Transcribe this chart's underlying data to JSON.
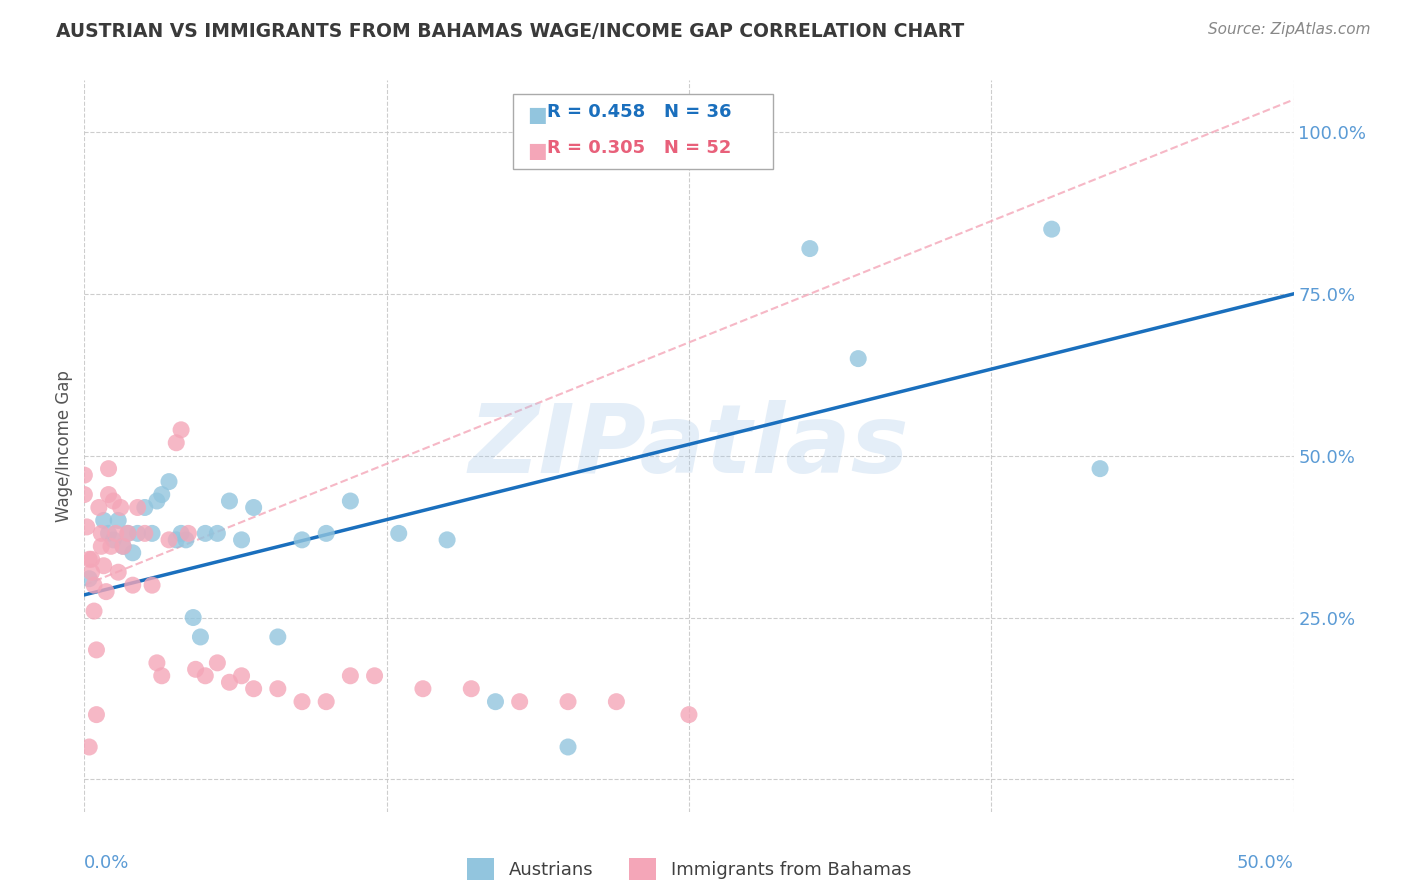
{
  "title": "AUSTRIAN VS IMMIGRANTS FROM BAHAMAS WAGE/INCOME GAP CORRELATION CHART",
  "source": "Source: ZipAtlas.com",
  "ylabel": "Wage/Income Gap",
  "xmin": 0.0,
  "xmax": 0.5,
  "ymin": -0.05,
  "ymax": 1.08,
  "watermark": "ZIPatlas",
  "legend_r1": "R = 0.458",
  "legend_n1": "N = 36",
  "legend_r2": "R = 0.305",
  "legend_n2": "N = 52",
  "blue_color": "#92c5de",
  "blue_line_color": "#1a6fbd",
  "pink_color": "#f4a6b8",
  "pink_line_color": "#e8607a",
  "diag_color": "#f4a6b8",
  "axis_label_color": "#5b9bd5",
  "grid_color": "#c8c8c8",
  "title_color": "#3a3a3a",
  "source_color": "#888888",
  "ytick_positions": [
    0.0,
    0.25,
    0.5,
    0.75,
    1.0
  ],
  "ytick_labels": [
    "",
    "25.0%",
    "50.0%",
    "75.0%",
    "100.0%"
  ],
  "xtick_left_label": "0.0%",
  "xtick_right_label": "50.0%",
  "austrians_x": [
    0.002,
    0.008,
    0.01,
    0.012,
    0.014,
    0.016,
    0.018,
    0.02,
    0.022,
    0.025,
    0.028,
    0.03,
    0.032,
    0.035,
    0.038,
    0.04,
    0.042,
    0.045,
    0.048,
    0.05,
    0.055,
    0.06,
    0.065,
    0.07,
    0.08,
    0.09,
    0.1,
    0.11,
    0.13,
    0.15,
    0.17,
    0.2,
    0.3,
    0.32,
    0.4,
    0.42
  ],
  "austrians_y": [
    0.31,
    0.4,
    0.38,
    0.37,
    0.4,
    0.36,
    0.38,
    0.35,
    0.38,
    0.42,
    0.38,
    0.43,
    0.44,
    0.46,
    0.37,
    0.38,
    0.37,
    0.25,
    0.22,
    0.38,
    0.38,
    0.43,
    0.37,
    0.42,
    0.22,
    0.37,
    0.38,
    0.43,
    0.38,
    0.37,
    0.12,
    0.05,
    0.82,
    0.65,
    0.85,
    0.48
  ],
  "bahamas_x": [
    0.0,
    0.0,
    0.001,
    0.002,
    0.002,
    0.003,
    0.003,
    0.004,
    0.004,
    0.005,
    0.005,
    0.006,
    0.007,
    0.007,
    0.008,
    0.009,
    0.01,
    0.01,
    0.011,
    0.012,
    0.013,
    0.014,
    0.015,
    0.016,
    0.018,
    0.02,
    0.022,
    0.025,
    0.028,
    0.03,
    0.032,
    0.035,
    0.038,
    0.04,
    0.043,
    0.046,
    0.05,
    0.055,
    0.06,
    0.065,
    0.07,
    0.08,
    0.09,
    0.1,
    0.11,
    0.12,
    0.14,
    0.16,
    0.18,
    0.2,
    0.22,
    0.25
  ],
  "bahamas_y": [
    0.47,
    0.44,
    0.39,
    0.34,
    0.05,
    0.34,
    0.32,
    0.3,
    0.26,
    0.2,
    0.1,
    0.42,
    0.38,
    0.36,
    0.33,
    0.29,
    0.48,
    0.44,
    0.36,
    0.43,
    0.38,
    0.32,
    0.42,
    0.36,
    0.38,
    0.3,
    0.42,
    0.38,
    0.3,
    0.18,
    0.16,
    0.37,
    0.52,
    0.54,
    0.38,
    0.17,
    0.16,
    0.18,
    0.15,
    0.16,
    0.14,
    0.14,
    0.12,
    0.12,
    0.16,
    0.16,
    0.14,
    0.14,
    0.12,
    0.12,
    0.12,
    0.1
  ],
  "blue_trend_x": [
    0.0,
    0.5
  ],
  "blue_trend_y": [
    0.285,
    0.75
  ],
  "diag_trend_x": [
    0.0,
    0.5
  ],
  "diag_trend_y": [
    0.3,
    1.05
  ]
}
